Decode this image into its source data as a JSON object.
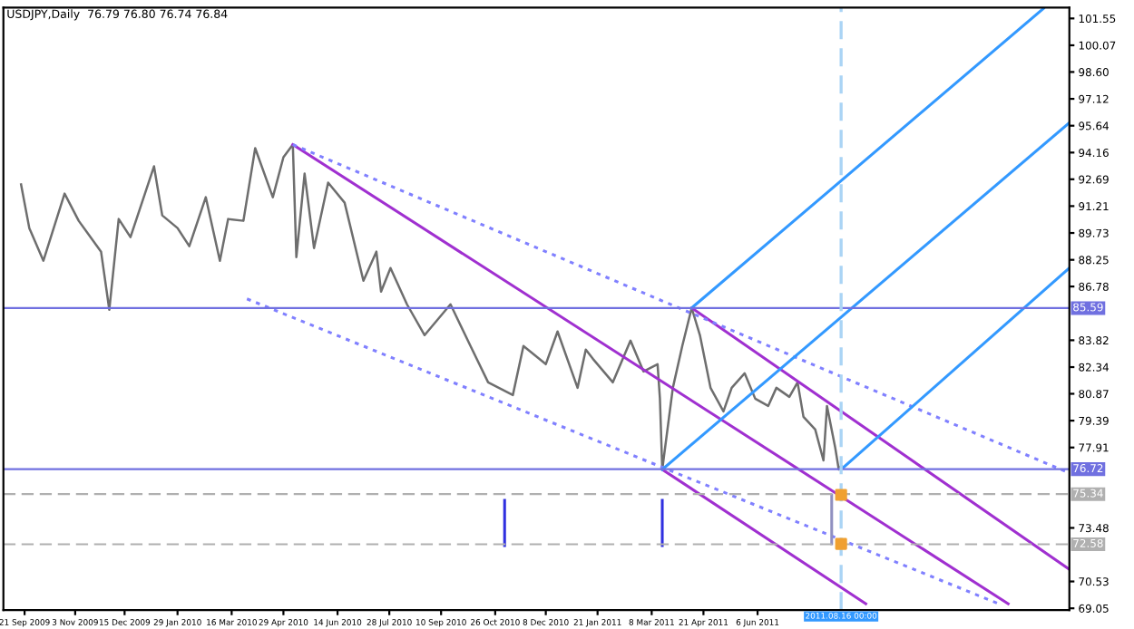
{
  "chart_data": {
    "type": "line",
    "title": "USDJPY,Daily  76.79 76.80 76.74 76.84",
    "xlim": [
      "2009-09-03",
      "2012-02-26"
    ],
    "ylim": [
      68.95,
      102.15
    ],
    "xticks": [
      {
        "value": "2009-09-21",
        "label": "21 Sep 2009"
      },
      {
        "value": "2009-11-03",
        "label": "3 Nov 2009"
      },
      {
        "value": "2009-12-15",
        "label": "15 Dec 2009"
      },
      {
        "value": "2010-01-29",
        "label": "29 Jan 2010"
      },
      {
        "value": "2010-03-16",
        "label": "16 Mar 2010"
      },
      {
        "value": "2010-04-29",
        "label": "29 Apr 2010"
      },
      {
        "value": "2010-06-14",
        "label": "14 Jun 2010"
      },
      {
        "value": "2010-07-28",
        "label": "28 Jul 2010"
      },
      {
        "value": "2010-09-10",
        "label": "10 Sep 2010"
      },
      {
        "value": "2010-10-26",
        "label": "26 Oct 2010"
      },
      {
        "value": "2010-12-08",
        "label": "8 Dec 2010"
      },
      {
        "value": "2011-01-21",
        "label": "21 Jan 2011"
      },
      {
        "value": "2011-03-08",
        "label": "8 Mar 2011"
      },
      {
        "value": "2011-04-21",
        "label": "21 Apr 2011"
      },
      {
        "value": "2011-06-06",
        "label": "6 Jun 2011"
      }
    ],
    "yticks": [
      {
        "value": 101.55,
        "label": "101.55"
      },
      {
        "value": 100.07,
        "label": "100.07"
      },
      {
        "value": 98.6,
        "label": "98.60"
      },
      {
        "value": 97.12,
        "label": "97.12"
      },
      {
        "value": 95.64,
        "label": "95.64"
      },
      {
        "value": 94.16,
        "label": "94.16"
      },
      {
        "value": 92.69,
        "label": "92.69"
      },
      {
        "value": 91.21,
        "label": "91.21"
      },
      {
        "value": 89.73,
        "label": "89.73"
      },
      {
        "value": 88.25,
        "label": "88.25"
      },
      {
        "value": 86.78,
        "label": "86.78"
      },
      {
        "value": 83.82,
        "label": "83.82"
      },
      {
        "value": 82.34,
        "label": "82.34"
      },
      {
        "value": 80.87,
        "label": "80.87"
      },
      {
        "value": 79.39,
        "label": "79.39"
      },
      {
        "value": 77.91,
        "label": "77.91"
      },
      {
        "value": 73.48,
        "label": "73.48"
      },
      {
        "value": 70.53,
        "label": "70.53"
      },
      {
        "value": 69.05,
        "label": "69.05"
      }
    ],
    "grid": false,
    "legend": false,
    "ref_lines": [
      {
        "axis": "y",
        "value": 85.59,
        "label": "85.59",
        "color": "#7070e0",
        "line_style": "solid"
      },
      {
        "axis": "y",
        "value": 76.72,
        "label": "76.72",
        "color": "#7070e0",
        "line_style": "solid"
      },
      {
        "axis": "y",
        "value": 75.34,
        "label": "75.34",
        "color": "#b0b0b0",
        "line_style": "dashed"
      },
      {
        "axis": "y",
        "value": 72.58,
        "label": "72.58",
        "color": "#b0b0b0",
        "line_style": "dashed"
      },
      {
        "axis": "x",
        "value": "2011-08-16",
        "label": "2011.08.16 00:00",
        "color": "#aad4f5",
        "line_style": "dashed"
      }
    ],
    "series": [
      {
        "color": "#6e6e6e",
        "line_style": "solid",
        "x": [
          "2009-09-18",
          "2009-09-25",
          "2009-10-07",
          "2009-10-25",
          "2009-11-06",
          "2009-11-25",
          "2009-12-02",
          "2009-12-10",
          "2009-12-20",
          "2010-01-09",
          "2010-01-16",
          "2010-01-29",
          "2010-02-08",
          "2010-02-22",
          "2010-03-06",
          "2010-03-13",
          "2010-03-26",
          "2010-04-05",
          "2010-04-20",
          "2010-04-29",
          "2010-05-07",
          "2010-05-10",
          "2010-05-17",
          "2010-05-25",
          "2010-06-06",
          "2010-06-20",
          "2010-07-06",
          "2010-07-17",
          "2010-07-21",
          "2010-07-29",
          "2010-08-12",
          "2010-08-27",
          "2010-09-18",
          "2010-10-05",
          "2010-10-20",
          "2010-11-10",
          "2010-11-19",
          "2010-12-08",
          "2010-12-18",
          "2011-01-04",
          "2011-01-11",
          "2011-01-17",
          "2011-02-03",
          "2011-02-18",
          "2011-03-01",
          "2011-03-13",
          "2011-03-15",
          "2011-03-17",
          "2011-03-26",
          "2011-04-03",
          "2011-04-11",
          "2011-04-18",
          "2011-04-27",
          "2011-05-08",
          "2011-05-15",
          "2011-05-26",
          "2011-06-04",
          "2011-06-15",
          "2011-06-22",
          "2011-07-03",
          "2011-07-10",
          "2011-07-15",
          "2011-07-25",
          "2011-08-01",
          "2011-08-04",
          "2011-08-11",
          "2011-08-14",
          "2011-08-16"
        ],
        "values": [
          92.4,
          90.0,
          88.2,
          91.9,
          90.4,
          88.7,
          85.5,
          90.5,
          89.5,
          93.4,
          90.7,
          90.0,
          89.0,
          91.7,
          88.2,
          90.5,
          90.4,
          94.4,
          91.7,
          93.9,
          94.6,
          88.4,
          93.0,
          88.9,
          92.5,
          91.4,
          87.1,
          88.7,
          86.5,
          87.8,
          85.8,
          84.1,
          85.8,
          83.5,
          81.5,
          80.8,
          83.5,
          82.5,
          84.3,
          81.2,
          83.3,
          82.8,
          81.5,
          83.8,
          82.1,
          82.5,
          80.6,
          76.7,
          81.2,
          83.5,
          85.6,
          84.1,
          81.2,
          79.9,
          81.2,
          82.0,
          80.6,
          80.2,
          81.2,
          80.7,
          81.5,
          79.6,
          78.9,
          77.2,
          80.2,
          77.9,
          76.7,
          76.9
        ]
      },
      {
        "color": "#a030d0",
        "line_style": "solid",
        "x": [
          "2010-05-07",
          "2012-01-05"
        ],
        "values": [
          94.6,
          69.3
        ]
      },
      {
        "color": "#a030d0",
        "line_style": "solid",
        "x": [
          "2011-04-11",
          "2012-02-26"
        ],
        "values": [
          85.6,
          71.2
        ]
      },
      {
        "color": "#a030d0",
        "line_style": "solid",
        "x": [
          "2011-03-17",
          "2011-09-06"
        ],
        "values": [
          76.7,
          69.3
        ]
      },
      {
        "color": "#8080ff",
        "line_style": "dotted",
        "x": [
          "2010-05-07",
          "2012-02-26"
        ],
        "values": [
          94.6,
          76.5
        ]
      },
      {
        "color": "#8080ff",
        "line_style": "dotted",
        "x": [
          "2010-03-29",
          "2011-12-28"
        ],
        "values": [
          86.1,
          69.3
        ]
      },
      {
        "color": "#3399ff",
        "line_style": "solid",
        "x": [
          "2011-03-17",
          "2012-02-26"
        ],
        "values": [
          76.7,
          95.8
        ]
      },
      {
        "color": "#3399ff",
        "line_style": "solid",
        "x": [
          "2011-04-11",
          "2012-02-04"
        ],
        "values": [
          85.6,
          102.1
        ]
      },
      {
        "color": "#3399ff",
        "line_style": "solid",
        "x": [
          "2011-08-16",
          "2012-02-26"
        ],
        "values": [
          76.7,
          87.8
        ]
      },
      {
        "color": "#3030e0",
        "line_style": "solid",
        "x": [
          "2010-11-03",
          "2010-11-03"
        ],
        "values": [
          75.0,
          72.5
        ]
      },
      {
        "color": "#3030e0",
        "line_style": "solid",
        "x": [
          "2011-03-17",
          "2011-03-17"
        ],
        "values": [
          75.0,
          72.5
        ]
      },
      {
        "color": "#9090c0",
        "line_style": "solid",
        "x": [
          "2011-08-08",
          "2011-08-08"
        ],
        "values": [
          75.3,
          72.6
        ]
      },
      {
        "type": "scatter",
        "color": "#f0a030",
        "marker": "square",
        "x": [
          "2011-08-16",
          "2011-08-16"
        ],
        "values": [
          75.3,
          72.6
        ]
      }
    ]
  }
}
